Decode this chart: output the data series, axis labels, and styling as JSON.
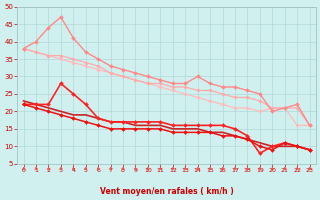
{
  "title": "",
  "xlabel": "Vent moyen/en rafales ( km/h )",
  "xlim": [
    -0.5,
    23.5
  ],
  "ylim": [
    5,
    50
  ],
  "yticks": [
    5,
    10,
    15,
    20,
    25,
    30,
    35,
    40,
    45,
    50
  ],
  "xticks": [
    0,
    1,
    2,
    3,
    4,
    5,
    6,
    7,
    8,
    9,
    10,
    11,
    12,
    13,
    14,
    15,
    16,
    17,
    18,
    19,
    20,
    21,
    22,
    23
  ],
  "background_color": "#d0f0f0",
  "grid_color": "#b0d8d8",
  "lines": [
    {
      "x": [
        0,
        1,
        2,
        3,
        4,
        5,
        6,
        7,
        8,
        9,
        10,
        11,
        12,
        13,
        14,
        15,
        16,
        17,
        18,
        19,
        20,
        21,
        22,
        23
      ],
      "y": [
        38,
        37,
        36,
        35,
        34,
        33,
        32,
        31,
        30,
        29,
        28,
        27,
        26,
        25,
        24,
        23,
        22,
        21,
        21,
        20,
        21,
        21,
        16,
        16
      ],
      "color": "#ffbbbb",
      "marker": "D",
      "markersize": 1.8,
      "linewidth": 0.9
    },
    {
      "x": [
        0,
        1,
        2,
        3,
        4,
        5,
        6,
        7,
        8,
        9,
        10,
        11,
        12,
        13,
        14,
        15,
        16,
        17,
        18,
        19,
        20,
        21,
        22,
        23
      ],
      "y": [
        38,
        37,
        36,
        36,
        35,
        34,
        33,
        31,
        30,
        29,
        28,
        28,
        27,
        27,
        26,
        26,
        25,
        24,
        24,
        23,
        21,
        21,
        21,
        16
      ],
      "color": "#ffaaaa",
      "marker": "D",
      "markersize": 1.8,
      "linewidth": 0.9
    },
    {
      "x": [
        0,
        1,
        2,
        3,
        4,
        5,
        6,
        7,
        8,
        9,
        10,
        11,
        12,
        13,
        14,
        15,
        16,
        17,
        18,
        19,
        20,
        21,
        22,
        23
      ],
      "y": [
        38,
        40,
        44,
        47,
        41,
        37,
        35,
        33,
        32,
        31,
        30,
        29,
        28,
        28,
        30,
        28,
        27,
        27,
        26,
        25,
        20,
        21,
        22,
        16
      ],
      "color": "#ff8888",
      "marker": "D",
      "markersize": 2.0,
      "linewidth": 1.0
    },
    {
      "x": [
        0,
        1,
        2,
        3,
        4,
        5,
        6,
        7,
        8,
        9,
        10,
        11,
        12,
        13,
        14,
        15,
        16,
        17,
        18,
        19,
        20,
        21,
        22,
        23
      ],
      "y": [
        23,
        22,
        21,
        20,
        19,
        19,
        18,
        17,
        17,
        16,
        16,
        16,
        15,
        15,
        15,
        14,
        14,
        13,
        12,
        11,
        10,
        10,
        10,
        9
      ],
      "color": "#cc2222",
      "marker": null,
      "markersize": 0,
      "linewidth": 1.2
    },
    {
      "x": [
        0,
        1,
        2,
        3,
        4,
        5,
        6,
        7,
        8,
        9,
        10,
        11,
        12,
        13,
        14,
        15,
        16,
        17,
        18,
        19,
        20,
        21,
        22,
        23
      ],
      "y": [
        22,
        22,
        22,
        28,
        25,
        22,
        18,
        17,
        17,
        17,
        17,
        17,
        16,
        16,
        16,
        16,
        16,
        15,
        13,
        8,
        10,
        11,
        10,
        9
      ],
      "color": "#ff2222",
      "marker": "D",
      "markersize": 2.0,
      "linewidth": 1.2
    },
    {
      "x": [
        0,
        1,
        2,
        3,
        4,
        5,
        6,
        7,
        8,
        9,
        10,
        11,
        12,
        13,
        14,
        15,
        16,
        17,
        18,
        19,
        20,
        21,
        22,
        23
      ],
      "y": [
        22,
        21,
        20,
        19,
        18,
        17,
        16,
        15,
        15,
        15,
        15,
        15,
        14,
        14,
        14,
        14,
        13,
        13,
        12,
        10,
        9,
        11,
        10,
        9
      ],
      "color": "#ee1111",
      "marker": "D",
      "markersize": 2.0,
      "linewidth": 1.1
    }
  ],
  "arrow_color": "#ff4444"
}
